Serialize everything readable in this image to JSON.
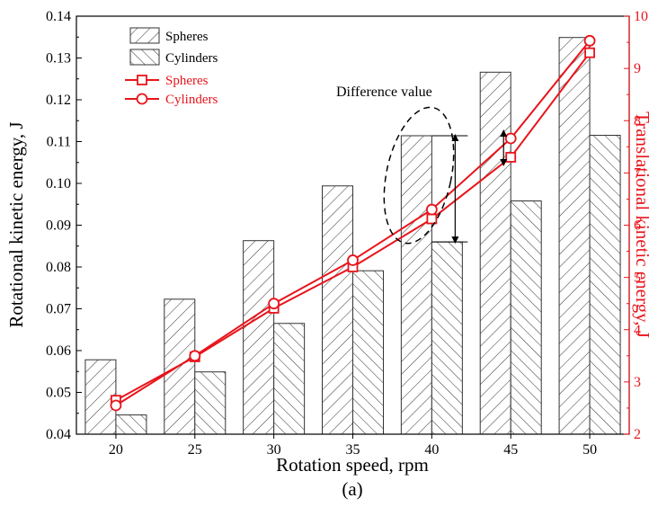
{
  "chart_data": {
    "type": "bar",
    "title": "",
    "panel_label": "(a)",
    "xlabel": "Rotation speed, rpm",
    "ylabel": "Rotational kinetic energy, J",
    "y2label": "Translational kinetic energy, J",
    "categories": [
      "20",
      "25",
      "30",
      "35",
      "40",
      "45",
      "50"
    ],
    "ylim": [
      0.04,
      0.14
    ],
    "y2lim": [
      2,
      10
    ],
    "yticks": [
      "0.04",
      "0.05",
      "0.06",
      "0.07",
      "0.08",
      "0.09",
      "0.10",
      "0.11",
      "0.12",
      "0.13",
      "0.14"
    ],
    "y2ticks": [
      "2",
      "3",
      "4",
      "5",
      "6",
      "7",
      "8",
      "9",
      "10"
    ],
    "bar_series": [
      {
        "name": "Spheres",
        "axis": "left",
        "hatch": "diag-right",
        "values": [
          0.0578,
          0.0723,
          0.0863,
          0.0994,
          0.1114,
          0.1266,
          0.1349
        ]
      },
      {
        "name": "Cylinders",
        "axis": "left",
        "hatch": "diag-left",
        "values": [
          0.0446,
          0.0549,
          0.0665,
          0.0791,
          0.086,
          0.0958,
          0.1115
        ]
      }
    ],
    "line_series": [
      {
        "name": "Spheres",
        "axis": "right",
        "marker": "square",
        "color": "#e8141b",
        "values": [
          2.65,
          3.48,
          4.41,
          5.2,
          6.12,
          7.3,
          9.3
        ]
      },
      {
        "name": "Cylinders",
        "axis": "right",
        "marker": "circle",
        "color": "#e8141b",
        "values": [
          2.55,
          3.5,
          4.5,
          5.33,
          6.3,
          7.66,
          9.53
        ]
      }
    ],
    "annotation": {
      "text": "Difference value",
      "category": "40",
      "from": 0.1114,
      "to": 0.086
    },
    "legend_position": "top-left",
    "grid": false
  }
}
